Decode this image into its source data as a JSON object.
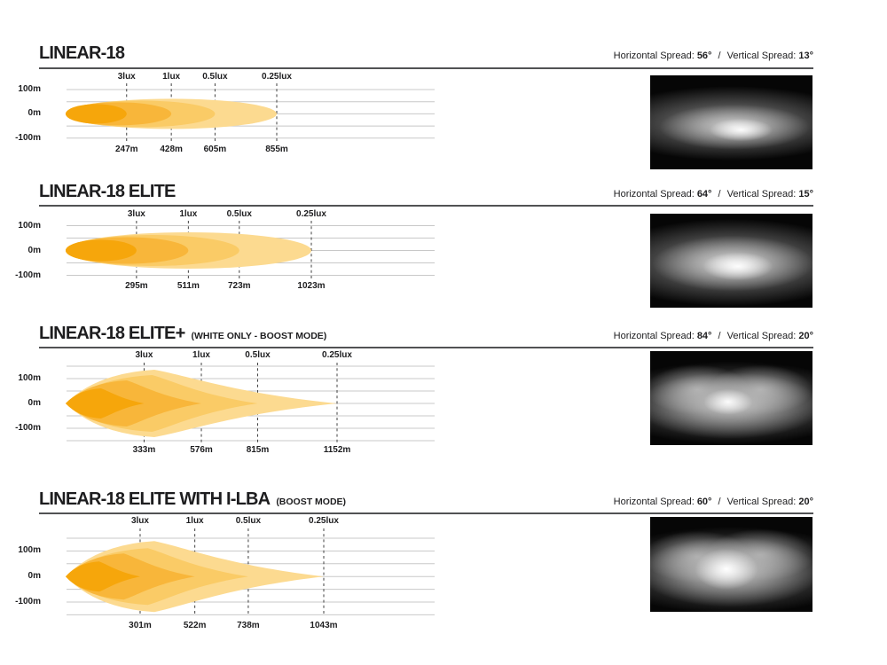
{
  "labels": {
    "horizontal_spread": "Horizontal Spread:",
    "vertical_spread": "Vertical Spread:",
    "separator": "/"
  },
  "sections": [
    {
      "title": "LINEAR-18",
      "subtitle": "",
      "horizontal_spread": "56°",
      "vertical_spread": "13°"
    },
    {
      "title": "LINEAR-18 ELITE",
      "subtitle": "",
      "horizontal_spread": "64°",
      "vertical_spread": "15°"
    },
    {
      "title": "LINEAR-18 ELITE+",
      "subtitle": "(WHITE ONLY - BOOST MODE)",
      "horizontal_spread": "84°",
      "vertical_spread": "20°"
    },
    {
      "title": "LINEAR-18 ELITE WITH I-LBA",
      "subtitle": "(BOOST MODE)",
      "horizontal_spread": "60°",
      "vertical_spread": "20°"
    }
  ],
  "chart_data": [
    {
      "type": "area",
      "title": "LINEAR-18",
      "beam_shape": "ellipse",
      "lux_levels": [
        "3lux",
        "1lux",
        "0.5lux",
        "0.25lux"
      ],
      "distances_m": [
        247,
        428,
        605,
        855
      ],
      "y_axis_ticks": [
        "100m",
        "0m",
        "-100m"
      ],
      "y_range_m": [
        -100,
        100
      ],
      "x_range_m": [
        0,
        1500
      ],
      "horizontal_spread_deg": 56,
      "vertical_spread_deg": 13
    },
    {
      "type": "area",
      "title": "LINEAR-18 ELITE",
      "beam_shape": "ellipse",
      "lux_levels": [
        "3lux",
        "1lux",
        "0.5lux",
        "0.25lux"
      ],
      "distances_m": [
        295,
        511,
        723,
        1023
      ],
      "y_axis_ticks": [
        "100m",
        "0m",
        "-100m"
      ],
      "y_range_m": [
        -100,
        100
      ],
      "x_range_m": [
        0,
        1500
      ],
      "horizontal_spread_deg": 64,
      "vertical_spread_deg": 15
    },
    {
      "type": "area",
      "title": "LINEAR-18 ELITE+ (WHITE ONLY - BOOST MODE)",
      "beam_shape": "flame",
      "lux_levels": [
        "3lux",
        "1lux",
        "0.5lux",
        "0.25lux"
      ],
      "distances_m": [
        333,
        576,
        815,
        1152
      ],
      "y_axis_ticks": [
        "100m",
        "0m",
        "-100m"
      ],
      "y_range_m": [
        -150,
        150
      ],
      "x_range_m": [
        0,
        1500
      ],
      "horizontal_spread_deg": 84,
      "vertical_spread_deg": 20
    },
    {
      "type": "area",
      "title": "LINEAR-18 ELITE WITH I-LBA (BOOST MODE)",
      "beam_shape": "flame",
      "lux_levels": [
        "3lux",
        "1lux",
        "0.5lux",
        "0.25lux"
      ],
      "distances_m": [
        301,
        522,
        738,
        1043
      ],
      "y_axis_ticks": [
        "100m",
        "0m",
        "-100m"
      ],
      "y_range_m": [
        -150,
        150
      ],
      "x_range_m": [
        0,
        1500
      ],
      "horizontal_spread_deg": 60,
      "vertical_spread_deg": 20
    }
  ],
  "colors": {
    "beam_bands_inner_to_outer": [
      "#F6A60B",
      "#F8B63A",
      "#FACB66",
      "#FCDA90"
    ],
    "gridline": "#C8C8C8",
    "dashed_line": "#404040",
    "text": "#1D1D1F",
    "divider": "#515254",
    "background": "#FFFFFF",
    "beam_image_background": "#060606"
  }
}
